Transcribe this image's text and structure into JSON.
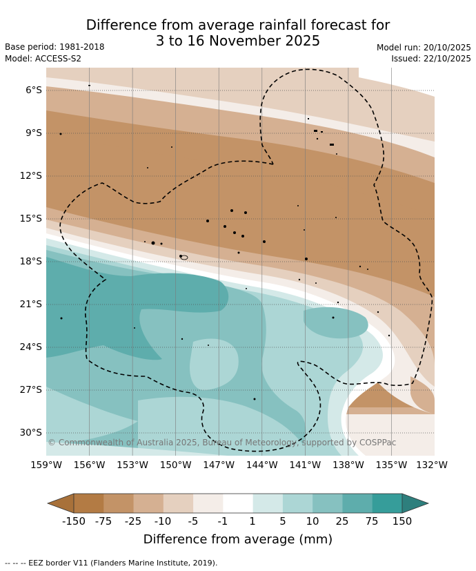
{
  "title_line1": "Difference from average rainfall forecast for",
  "title_line2": "3 to 16 November 2025",
  "base_period": "Base period: 1981-2018",
  "model": "Model: ACCESS-S2",
  "model_run": "Model run: 20/10/2025",
  "issued": "Issued: 22/10/2025",
  "lat_labels": [
    "6°S",
    "9°S",
    "12°S",
    "15°S",
    "18°S",
    "21°S",
    "24°S",
    "27°S",
    "30°S"
  ],
  "lon_labels": [
    "159°W",
    "156°W",
    "153°W",
    "150°W",
    "147°W",
    "144°W",
    "141°W",
    "138°W",
    "135°W",
    "132°W"
  ],
  "copyright": "© Commonwealth of Australia 2025, Bureau of Meteorology, supported by COSPPac",
  "colorbar": {
    "title": "Difference from average (mm)",
    "labels": [
      "-150",
      "-75",
      "-25",
      "-10",
      "-5",
      "-1",
      "1",
      "5",
      "10",
      "25",
      "75",
      "150"
    ],
    "colors": [
      "#a8713a",
      "#b37b44",
      "#c39367",
      "#d5b092",
      "#e5d0bf",
      "#f4ede8",
      "#ffffff",
      "#d4e9e8",
      "#acd6d5",
      "#86c1c0",
      "#5eadac",
      "#369d9a",
      "#2e7f7d"
    ]
  },
  "footer": "-- -- -- EEZ border V11 (Flanders Marine Institute, 2019)."
}
